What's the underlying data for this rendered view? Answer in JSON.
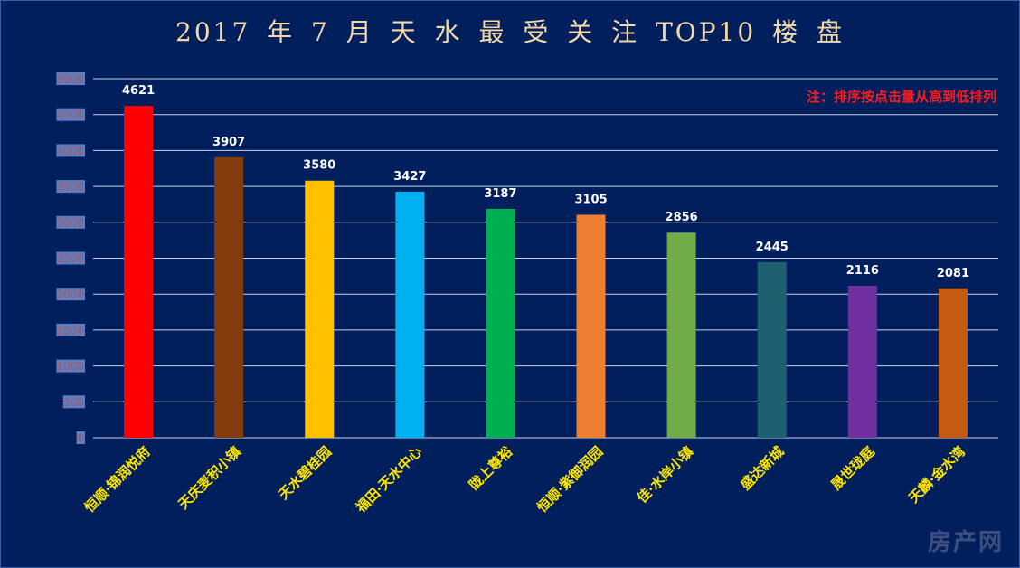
{
  "chart_data": {
    "type": "bar",
    "title": "2017 年 7 月 天 水 最 受 关 注 TOP10 楼 盘",
    "note": "注：排序按点击量从高到低排列",
    "categories": [
      "恒顺·锦润悦府",
      "天庆麦积小镇",
      "天水碧桂园",
      "福田·天水中心",
      "陇上尊裕",
      "恒顺·紫御润园",
      "佳·水岸小镇",
      "盛达新城",
      "晟世珑庭",
      "天麟·金水湾"
    ],
    "values": [
      4621,
      3907,
      3580,
      3427,
      3187,
      3105,
      2856,
      2445,
      2116,
      2081
    ],
    "colors": [
      "#ff0000",
      "#843c0c",
      "#ffc000",
      "#00b0f0",
      "#00b050",
      "#ed7d31",
      "#70ad47",
      "#1f6070",
      "#7030a0",
      "#c55a11"
    ],
    "ylim": [
      0,
      5000
    ],
    "yticks": [
      0,
      500,
      1000,
      1500,
      2000,
      2500,
      3000,
      3500,
      4000,
      4500,
      5000
    ],
    "grid": true,
    "legend": "none"
  },
  "watermark": "房产网"
}
